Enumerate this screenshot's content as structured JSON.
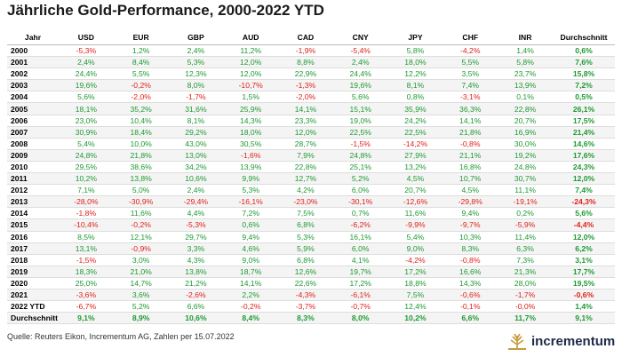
{
  "header": {
    "title": "Jährliche Gold-Performance, 2000-2022 YTD"
  },
  "table": {
    "columns": [
      "Jahr",
      "USD",
      "EUR",
      "GBP",
      "AUD",
      "CAD",
      "CNY",
      "JPY",
      "CHF",
      "INR",
      "Durchschnitt"
    ],
    "rows": [
      [
        "2000",
        "-5,3%",
        "1,2%",
        "2,4%",
        "11,2%",
        "-1,9%",
        "-5,4%",
        "5,8%",
        "-4,2%",
        "1,4%",
        "0,6%"
      ],
      [
        "2001",
        "2,4%",
        "8,4%",
        "5,3%",
        "12,0%",
        "8,8%",
        "2,4%",
        "18,0%",
        "5,5%",
        "5,8%",
        "7,6%"
      ],
      [
        "2002",
        "24,4%",
        "5,5%",
        "12,3%",
        "12,0%",
        "22,9%",
        "24,4%",
        "12,2%",
        "3,5%",
        "23,7%",
        "15,8%"
      ],
      [
        "2003",
        "19,6%",
        "-0,2%",
        "8,0%",
        "-10,7%",
        "-1,3%",
        "19,6%",
        "8,1%",
        "7,4%",
        "13,9%",
        "7,2%"
      ],
      [
        "2004",
        "5,6%",
        "-2,0%",
        "-1,7%",
        "1,5%",
        "-2,0%",
        "5,6%",
        "0,8%",
        "-3,1%",
        "0,1%",
        "0,5%"
      ],
      [
        "2005",
        "18,1%",
        "35,2%",
        "31,6%",
        "25,9%",
        "14,1%",
        "15,1%",
        "35,9%",
        "36,3%",
        "22,8%",
        "26,1%"
      ],
      [
        "2006",
        "23,0%",
        "10,4%",
        "8,1%",
        "14,3%",
        "23,3%",
        "19,0%",
        "24,2%",
        "14,1%",
        "20,7%",
        "17,5%"
      ],
      [
        "2007",
        "30,9%",
        "18,4%",
        "29,2%",
        "18,0%",
        "12,0%",
        "22,5%",
        "22,5%",
        "21,8%",
        "16,9%",
        "21,4%"
      ],
      [
        "2008",
        "5,4%",
        "10,0%",
        "43,0%",
        "30,5%",
        "28,7%",
        "-1,5%",
        "-14,2%",
        "-0,8%",
        "30,0%",
        "14,6%"
      ],
      [
        "2009",
        "24,8%",
        "21,8%",
        "13,0%",
        "-1,6%",
        "7,9%",
        "24,8%",
        "27,9%",
        "21,1%",
        "19,2%",
        "17,6%"
      ],
      [
        "2010",
        "29,5%",
        "38,6%",
        "34,2%",
        "13,9%",
        "22,8%",
        "25,1%",
        "13,2%",
        "16,8%",
        "24,8%",
        "24,3%"
      ],
      [
        "2011",
        "10,2%",
        "13,8%",
        "10,6%",
        "9,9%",
        "12,7%",
        "5,2%",
        "4,5%",
        "10,7%",
        "30,7%",
        "12,0%"
      ],
      [
        "2012",
        "7,1%",
        "5,0%",
        "2,4%",
        "5,3%",
        "4,2%",
        "6,0%",
        "20,7%",
        "4,5%",
        "11,1%",
        "7,4%"
      ],
      [
        "2013",
        "-28,0%",
        "-30,9%",
        "-29,4%",
        "-16,1%",
        "-23,0%",
        "-30,1%",
        "-12,6%",
        "-29,8%",
        "-19,1%",
        "-24,3%"
      ],
      [
        "2014",
        "-1,8%",
        "11,6%",
        "4,4%",
        "7,2%",
        "7,5%",
        "0,7%",
        "11,6%",
        "9,4%",
        "0,2%",
        "5,6%"
      ],
      [
        "2015",
        "-10,4%",
        "-0,2%",
        "-5,3%",
        "0,6%",
        "6,8%",
        "-6,2%",
        "-9,9%",
        "-9,7%",
        "-5,9%",
        "-4,4%"
      ],
      [
        "2016",
        "8,5%",
        "12,1%",
        "29,7%",
        "9,4%",
        "5,3%",
        "16,1%",
        "5,4%",
        "10,3%",
        "11,4%",
        "12,0%"
      ],
      [
        "2017",
        "13,1%",
        "-0,9%",
        "3,3%",
        "4,6%",
        "5,9%",
        "6,0%",
        "9,0%",
        "8,3%",
        "6,3%",
        "6,2%"
      ],
      [
        "2018",
        "-1,5%",
        "3,0%",
        "4,3%",
        "9,0%",
        "6,8%",
        "4,1%",
        "-4,2%",
        "-0,8%",
        "7,3%",
        "3,1%"
      ],
      [
        "2019",
        "18,3%",
        "21,0%",
        "13,8%",
        "18,7%",
        "12,6%",
        "19,7%",
        "17,2%",
        "16,6%",
        "21,3%",
        "17,7%"
      ],
      [
        "2020",
        "25,0%",
        "14,7%",
        "21,2%",
        "14,1%",
        "22,6%",
        "17,2%",
        "18,8%",
        "14,3%",
        "28,0%",
        "19,5%"
      ],
      [
        "2021",
        "-3,6%",
        "3,6%",
        "-2,6%",
        "2,2%",
        "-4,3%",
        "-6,1%",
        "7,5%",
        "-0,6%",
        "-1,7%",
        "-0,6%"
      ],
      [
        "2022 YTD",
        "-6,7%",
        "5,2%",
        "6,6%",
        "-0,2%",
        "-3,7%",
        "-0,7%",
        "12,4%",
        "-0,1%",
        "-0,0%",
        "1,4%"
      ],
      [
        "Durchschnitt",
        "9,1%",
        "8,9%",
        "10,6%",
        "8,4%",
        "8,3%",
        "8,0%",
        "10,2%",
        "6,6%",
        "11,7%",
        "9,1%"
      ]
    ]
  },
  "footer": {
    "source": "Quelle: Reuters Eikon, Incrementum AG, Zahlen per 15.07.2022",
    "logo": "incrementum"
  }
}
